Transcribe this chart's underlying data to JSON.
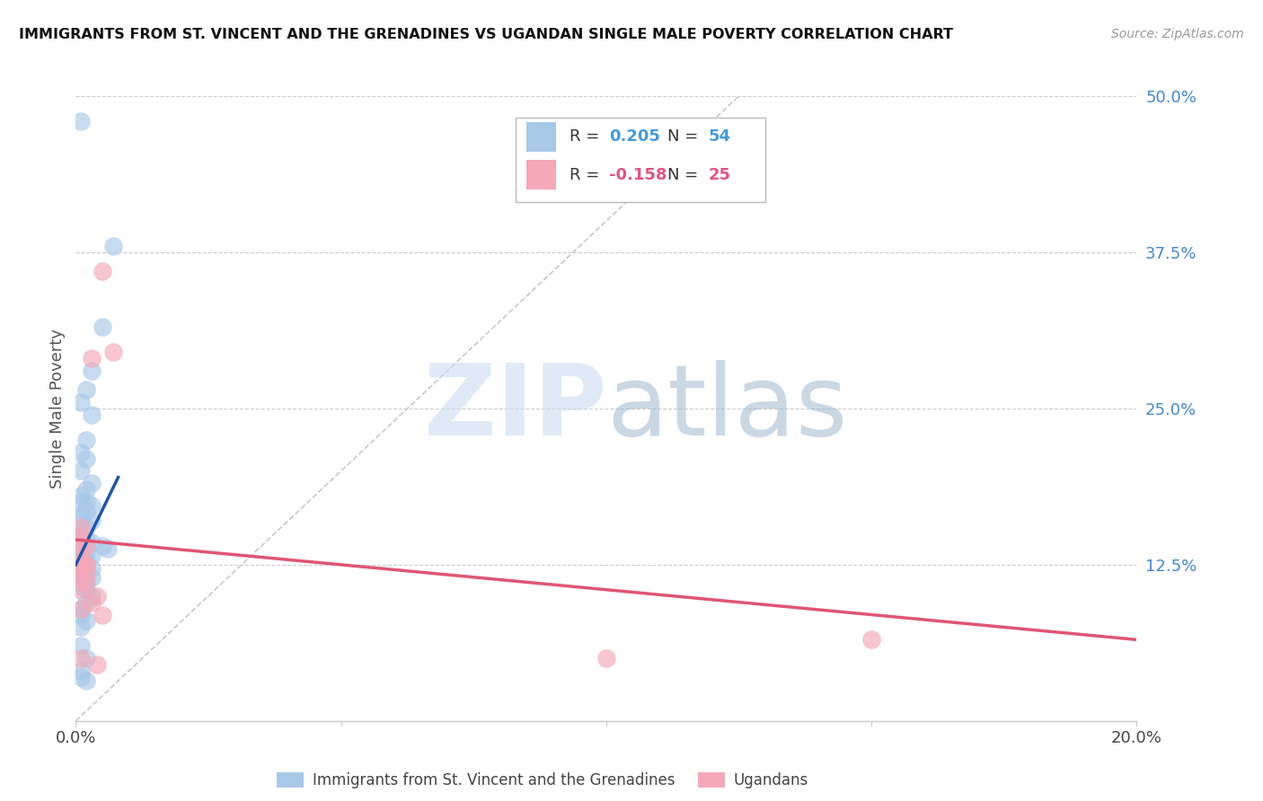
{
  "title": "IMMIGRANTS FROM ST. VINCENT AND THE GRENADINES VS UGANDAN SINGLE MALE POVERTY CORRELATION CHART",
  "source": "Source: ZipAtlas.com",
  "ylabel": "Single Male Poverty",
  "xlim": [
    0.0,
    0.2
  ],
  "ylim": [
    0.0,
    0.5
  ],
  "xticks": [
    0.0,
    0.05,
    0.1,
    0.15,
    0.2
  ],
  "xticklabels": [
    "0.0%",
    "",
    "",
    "",
    "20.0%"
  ],
  "yticks_right": [
    0.125,
    0.25,
    0.375,
    0.5
  ],
  "yticklabels_right": [
    "12.5%",
    "25.0%",
    "37.5%",
    "50.0%"
  ],
  "blue_R": 0.205,
  "blue_N": 54,
  "pink_R": -0.158,
  "pink_N": 25,
  "blue_color": "#a8c8e8",
  "blue_line_color": "#2255aa",
  "pink_color": "#f4a8b8",
  "pink_line_color": "#e05575",
  "diagonal_color": "#c8c8c8",
  "watermark_zip": "ZIP",
  "watermark_atlas": "atlas",
  "legend_label_blue": "Immigrants from St. Vincent and the Grenadines",
  "legend_label_pink": "Ugandans",
  "blue_scatter_x": [
    0.001,
    0.007,
    0.005,
    0.003,
    0.002,
    0.001,
    0.003,
    0.002,
    0.001,
    0.002,
    0.001,
    0.003,
    0.002,
    0.001,
    0.001,
    0.002,
    0.003,
    0.002,
    0.001,
    0.001,
    0.003,
    0.002,
    0.001,
    0.001,
    0.002,
    0.003,
    0.005,
    0.006,
    0.001,
    0.002,
    0.003,
    0.001,
    0.002,
    0.002,
    0.001,
    0.003,
    0.002,
    0.001,
    0.003,
    0.002,
    0.001,
    0.001,
    0.002,
    0.003,
    0.002,
    0.001,
    0.001,
    0.002,
    0.001,
    0.001,
    0.002,
    0.001,
    0.001,
    0.002
  ],
  "blue_scatter_y": [
    0.48,
    0.38,
    0.315,
    0.28,
    0.265,
    0.255,
    0.245,
    0.225,
    0.215,
    0.21,
    0.2,
    0.19,
    0.185,
    0.18,
    0.175,
    0.175,
    0.172,
    0.168,
    0.165,
    0.162,
    0.16,
    0.155,
    0.15,
    0.148,
    0.145,
    0.143,
    0.14,
    0.138,
    0.136,
    0.134,
    0.132,
    0.13,
    0.128,
    0.126,
    0.124,
    0.122,
    0.12,
    0.118,
    0.115,
    0.112,
    0.11,
    0.108,
    0.105,
    0.1,
    0.095,
    0.09,
    0.085,
    0.08,
    0.075,
    0.06,
    0.05,
    0.04,
    0.035,
    0.032
  ],
  "pink_scatter_x": [
    0.005,
    0.007,
    0.003,
    0.001,
    0.001,
    0.001,
    0.002,
    0.001,
    0.001,
    0.002,
    0.001,
    0.002,
    0.001,
    0.002,
    0.001,
    0.001,
    0.001,
    0.004,
    0.004,
    0.003,
    0.005,
    0.001,
    0.002,
    0.1,
    0.15
  ],
  "pink_scatter_y": [
    0.36,
    0.295,
    0.29,
    0.155,
    0.148,
    0.143,
    0.14,
    0.135,
    0.128,
    0.125,
    0.122,
    0.118,
    0.115,
    0.11,
    0.105,
    0.09,
    0.05,
    0.045,
    0.1,
    0.095,
    0.085,
    0.12,
    0.125,
    0.05,
    0.065
  ],
  "blue_trend_x": [
    0.0,
    0.008
  ],
  "blue_trend_y": [
    0.125,
    0.195
  ],
  "pink_trend_x": [
    0.0,
    0.2
  ],
  "pink_trend_y": [
    0.145,
    0.065
  ]
}
